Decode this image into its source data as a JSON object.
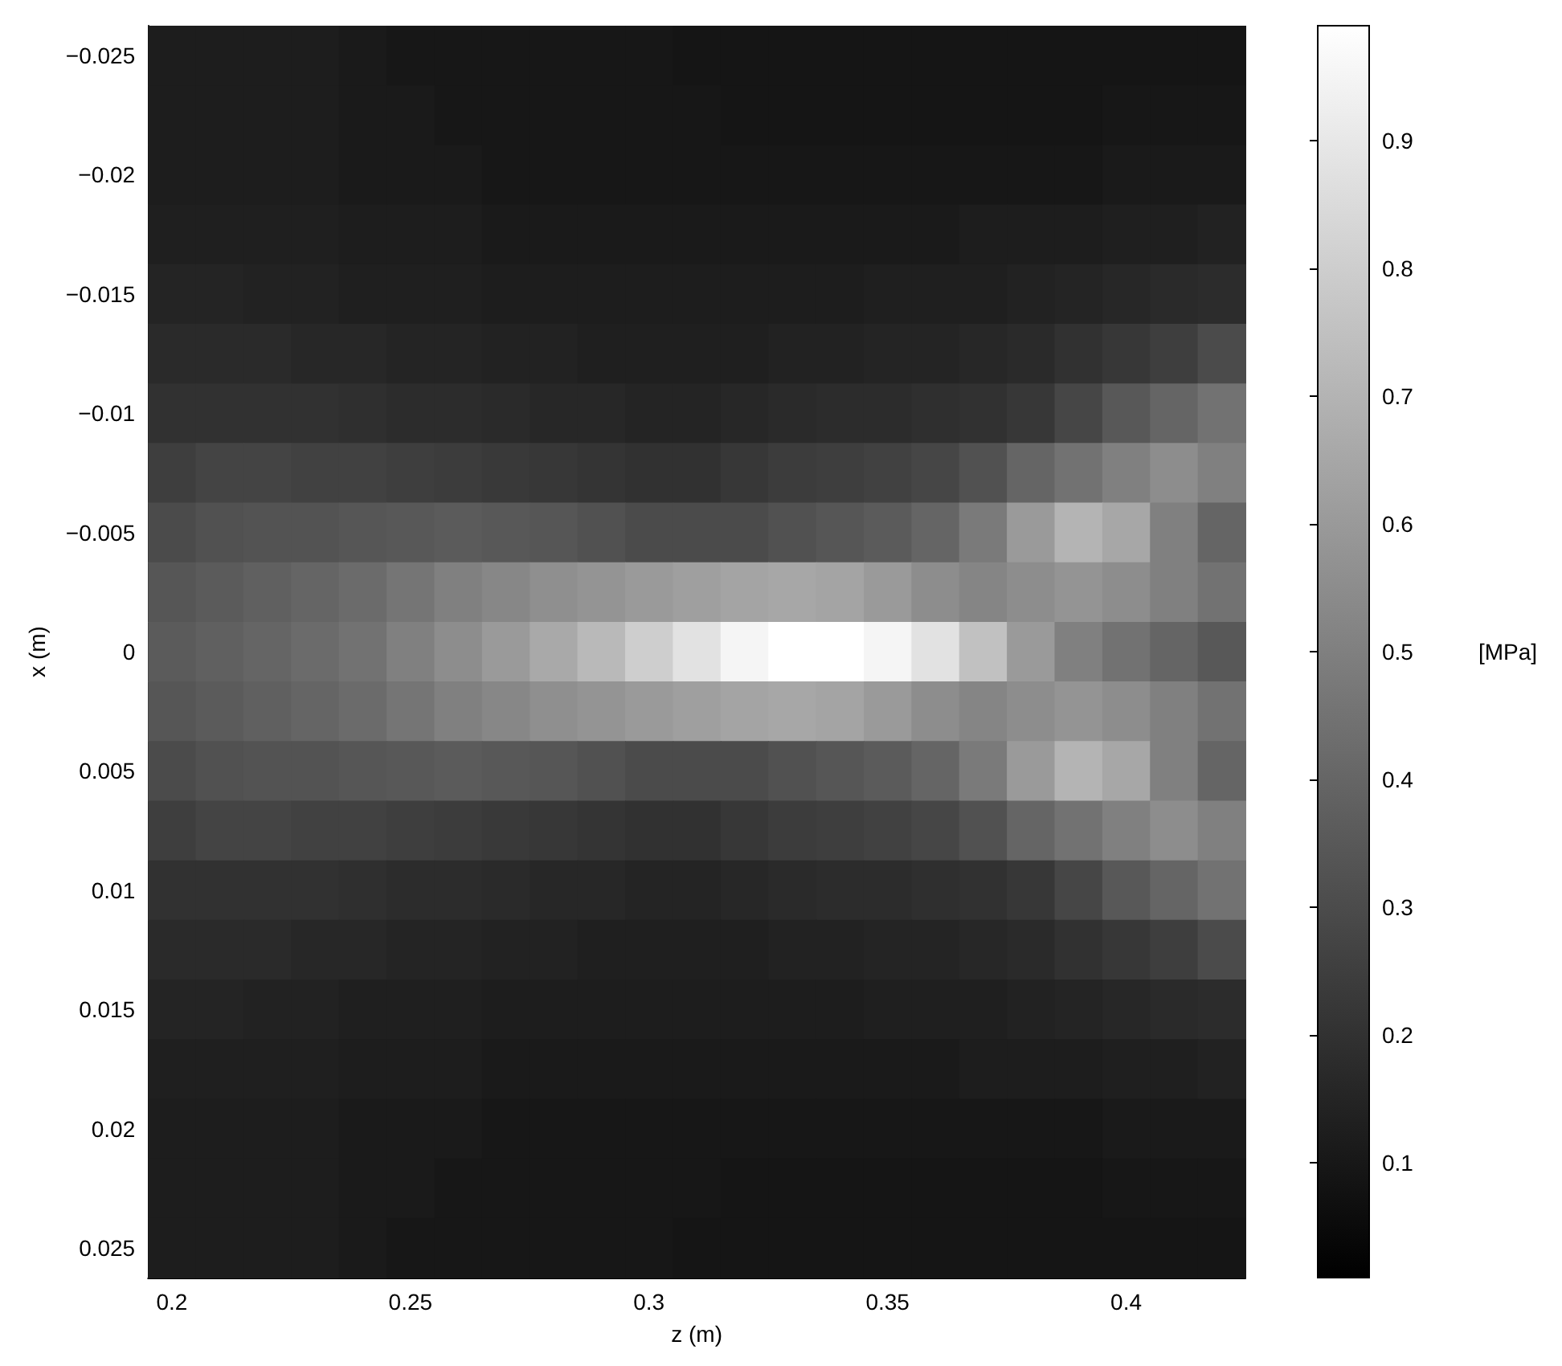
{
  "chart_data": {
    "type": "heatmap",
    "xlabel": "z (m)",
    "ylabel": "x (m)",
    "clabel": "[MPa]",
    "clim": [
      0.01,
      0.99
    ],
    "cticks": [
      0.1,
      0.2,
      0.3,
      0.4,
      0.5,
      0.6,
      0.7,
      0.8,
      0.9
    ],
    "categories": [
      "0.2",
      null,
      null,
      null,
      null,
      "0.25",
      null,
      null,
      null,
      null,
      "0.3",
      null,
      null,
      null,
      null,
      "0.35",
      null,
      null,
      null,
      null,
      "0.4",
      null,
      null
    ],
    "y_categories": [
      "−0.025",
      null,
      "−0.02",
      null,
      "−0.015",
      null,
      "−0.01",
      null,
      "−0.005",
      null,
      "0",
      null,
      "0.005",
      null,
      "0.01",
      null,
      "0.015",
      null,
      "0.02",
      null,
      "0.025"
    ],
    "cells": [
      [
        0.12,
        0.12,
        0.12,
        0.12,
        0.11,
        0.1,
        0.1,
        0.1,
        0.1,
        0.1,
        0.1,
        0.09,
        0.09,
        0.09,
        0.09,
        0.09,
        0.09,
        0.09,
        0.09,
        0.09,
        0.09,
        0.09,
        0.09
      ],
      [
        0.12,
        0.12,
        0.12,
        0.12,
        0.11,
        0.11,
        0.1,
        0.1,
        0.1,
        0.1,
        0.1,
        0.1,
        0.09,
        0.09,
        0.09,
        0.09,
        0.09,
        0.09,
        0.09,
        0.09,
        0.1,
        0.1,
        0.1
      ],
      [
        0.12,
        0.12,
        0.12,
        0.12,
        0.11,
        0.11,
        0.11,
        0.1,
        0.1,
        0.1,
        0.1,
        0.1,
        0.1,
        0.1,
        0.1,
        0.1,
        0.1,
        0.1,
        0.1,
        0.1,
        0.11,
        0.11,
        0.11
      ],
      [
        0.13,
        0.13,
        0.13,
        0.13,
        0.12,
        0.12,
        0.12,
        0.11,
        0.11,
        0.11,
        0.11,
        0.11,
        0.11,
        0.11,
        0.11,
        0.11,
        0.11,
        0.12,
        0.12,
        0.12,
        0.13,
        0.13,
        0.14
      ],
      [
        0.15,
        0.15,
        0.14,
        0.14,
        0.13,
        0.13,
        0.13,
        0.12,
        0.12,
        0.12,
        0.12,
        0.12,
        0.12,
        0.12,
        0.12,
        0.13,
        0.13,
        0.13,
        0.14,
        0.15,
        0.16,
        0.17,
        0.18
      ],
      [
        0.17,
        0.17,
        0.17,
        0.16,
        0.16,
        0.15,
        0.15,
        0.14,
        0.14,
        0.13,
        0.13,
        0.13,
        0.13,
        0.14,
        0.14,
        0.15,
        0.15,
        0.16,
        0.17,
        0.2,
        0.22,
        0.25,
        0.3
      ],
      [
        0.2,
        0.2,
        0.2,
        0.2,
        0.19,
        0.18,
        0.18,
        0.17,
        0.16,
        0.16,
        0.15,
        0.15,
        0.16,
        0.17,
        0.18,
        0.18,
        0.19,
        0.2,
        0.22,
        0.28,
        0.35,
        0.4,
        0.45
      ],
      [
        0.25,
        0.27,
        0.27,
        0.26,
        0.26,
        0.25,
        0.24,
        0.23,
        0.22,
        0.21,
        0.2,
        0.2,
        0.22,
        0.24,
        0.25,
        0.26,
        0.28,
        0.32,
        0.4,
        0.45,
        0.5,
        0.55,
        0.5
      ],
      [
        0.3,
        0.32,
        0.33,
        0.33,
        0.34,
        0.35,
        0.36,
        0.35,
        0.34,
        0.32,
        0.3,
        0.3,
        0.3,
        0.32,
        0.34,
        0.36,
        0.4,
        0.48,
        0.6,
        0.7,
        0.65,
        0.5,
        0.4
      ],
      [
        0.34,
        0.36,
        0.38,
        0.4,
        0.42,
        0.46,
        0.5,
        0.53,
        0.56,
        0.58,
        0.6,
        0.62,
        0.64,
        0.65,
        0.64,
        0.6,
        0.55,
        0.52,
        0.55,
        0.58,
        0.55,
        0.5,
        0.45
      ],
      [
        0.36,
        0.38,
        0.4,
        0.42,
        0.45,
        0.5,
        0.55,
        0.6,
        0.66,
        0.72,
        0.8,
        0.88,
        0.95,
        0.99,
        0.99,
        0.95,
        0.88,
        0.75,
        0.6,
        0.5,
        0.45,
        0.4,
        0.35
      ],
      [
        0.34,
        0.36,
        0.38,
        0.4,
        0.42,
        0.46,
        0.5,
        0.53,
        0.56,
        0.58,
        0.6,
        0.62,
        0.64,
        0.65,
        0.64,
        0.6,
        0.55,
        0.52,
        0.55,
        0.58,
        0.55,
        0.5,
        0.45
      ],
      [
        0.3,
        0.32,
        0.33,
        0.33,
        0.34,
        0.35,
        0.36,
        0.35,
        0.34,
        0.32,
        0.3,
        0.3,
        0.3,
        0.32,
        0.34,
        0.36,
        0.4,
        0.48,
        0.6,
        0.7,
        0.65,
        0.5,
        0.4
      ],
      [
        0.25,
        0.27,
        0.27,
        0.26,
        0.26,
        0.25,
        0.24,
        0.23,
        0.22,
        0.21,
        0.2,
        0.2,
        0.22,
        0.24,
        0.25,
        0.26,
        0.28,
        0.32,
        0.4,
        0.45,
        0.5,
        0.55,
        0.5
      ],
      [
        0.2,
        0.2,
        0.2,
        0.2,
        0.19,
        0.18,
        0.18,
        0.17,
        0.16,
        0.16,
        0.15,
        0.15,
        0.16,
        0.17,
        0.18,
        0.18,
        0.19,
        0.2,
        0.22,
        0.28,
        0.35,
        0.4,
        0.45
      ],
      [
        0.17,
        0.17,
        0.17,
        0.16,
        0.16,
        0.15,
        0.15,
        0.14,
        0.14,
        0.13,
        0.13,
        0.13,
        0.13,
        0.14,
        0.14,
        0.15,
        0.15,
        0.16,
        0.17,
        0.2,
        0.22,
        0.25,
        0.3
      ],
      [
        0.15,
        0.15,
        0.14,
        0.14,
        0.13,
        0.13,
        0.13,
        0.12,
        0.12,
        0.12,
        0.12,
        0.12,
        0.12,
        0.12,
        0.12,
        0.13,
        0.13,
        0.13,
        0.14,
        0.15,
        0.16,
        0.17,
        0.18
      ],
      [
        0.13,
        0.13,
        0.13,
        0.13,
        0.12,
        0.12,
        0.12,
        0.11,
        0.11,
        0.11,
        0.11,
        0.11,
        0.11,
        0.11,
        0.11,
        0.11,
        0.11,
        0.12,
        0.12,
        0.12,
        0.13,
        0.13,
        0.14
      ],
      [
        0.12,
        0.12,
        0.12,
        0.12,
        0.11,
        0.11,
        0.11,
        0.1,
        0.1,
        0.1,
        0.1,
        0.1,
        0.1,
        0.1,
        0.1,
        0.1,
        0.1,
        0.1,
        0.1,
        0.1,
        0.11,
        0.11,
        0.11
      ],
      [
        0.12,
        0.12,
        0.12,
        0.12,
        0.11,
        0.11,
        0.1,
        0.1,
        0.1,
        0.1,
        0.1,
        0.1,
        0.09,
        0.09,
        0.09,
        0.09,
        0.09,
        0.09,
        0.09,
        0.09,
        0.1,
        0.1,
        0.1
      ],
      [
        0.12,
        0.12,
        0.12,
        0.12,
        0.11,
        0.1,
        0.1,
        0.1,
        0.1,
        0.1,
        0.1,
        0.09,
        0.09,
        0.09,
        0.09,
        0.09,
        0.09,
        0.09,
        0.09,
        0.09,
        0.09,
        0.09,
        0.09
      ]
    ]
  }
}
